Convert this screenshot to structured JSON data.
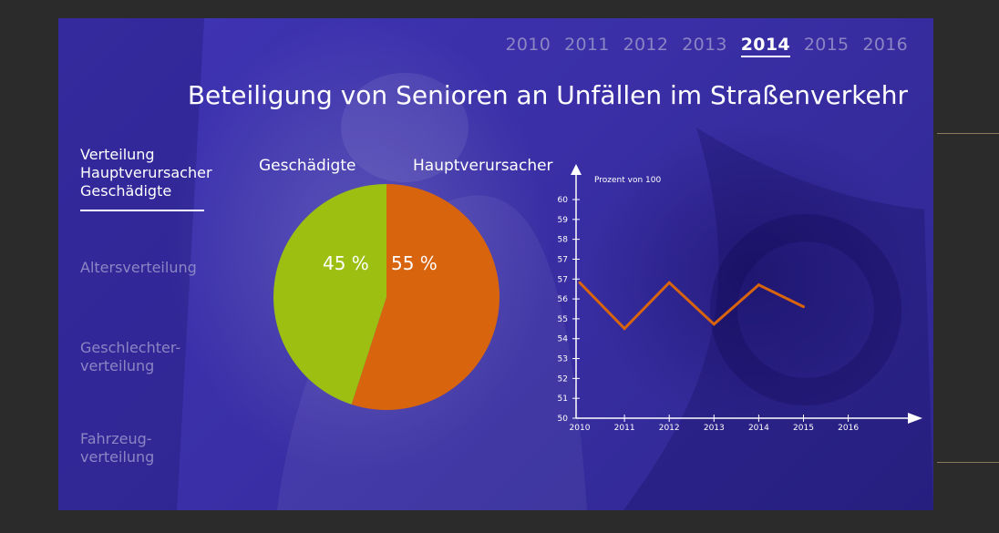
{
  "years": [
    "2010",
    "2011",
    "2012",
    "2013",
    "2014",
    "2015",
    "2016"
  ],
  "active_year": "2014",
  "title": "Beteiligung von Senioren an Unfällen im Straßenverkehr",
  "nav": {
    "item1_line1": "Verteilung",
    "item1_line2": "Hauptverursacher",
    "item1_line3": "Geschädigte",
    "item2": "Altersverteilung",
    "item3_line1": "Geschlechter-",
    "item3_line2": "verteilung",
    "item4_line1": "Fahrzeug-",
    "item4_line2": "verteilung"
  },
  "pie_labels": {
    "left": "Geschädigte",
    "right": "Hauptverursacher"
  },
  "colors": {
    "green": "#9cbf12",
    "orange": "#d9640e",
    "bg": "#3a2fa6",
    "inactive_text": "#8a86c4"
  },
  "chart_data": [
    {
      "type": "pie",
      "slices": [
        {
          "label": "Hauptverursacher",
          "value": 55,
          "text": "55 %",
          "color": "#d9640e"
        },
        {
          "label": "Geschädigte",
          "value": 45,
          "text": "45 %",
          "color": "#9cbf12"
        }
      ]
    },
    {
      "type": "line",
      "ylabel": "Prozent von 100",
      "x": [
        "2010",
        "2011",
        "2012",
        "2013",
        "2014",
        "2015"
      ],
      "x_ticks": [
        "2010",
        "2011",
        "2012",
        "2013",
        "2014",
        "2015",
        "2016"
      ],
      "y_ticks": [
        "50",
        "51",
        "52",
        "53",
        "54",
        "55",
        "56",
        "57",
        "57",
        "58",
        "59",
        "60"
      ],
      "values": [
        56.2,
        54.1,
        56.2,
        54.3,
        56.1,
        55.1
      ],
      "color": "#d9640e"
    }
  ]
}
